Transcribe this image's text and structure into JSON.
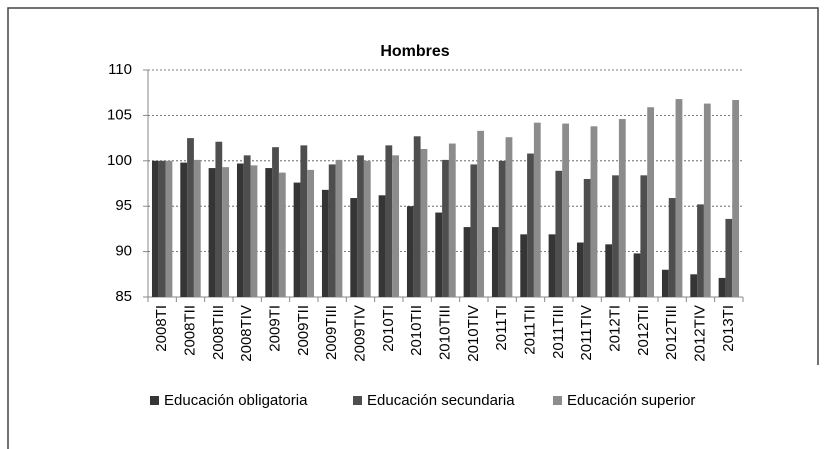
{
  "chart_data": {
    "type": "bar",
    "title": "Hombres",
    "categories": [
      "2008TI",
      "2008TII",
      "2008TIII",
      "2008TIV",
      "2009TI",
      "2009TII",
      "2009TIII",
      "2009TIV",
      "2010TI",
      "2010TII",
      "2010TIII",
      "2010TIV",
      "2011TI",
      "2011TII",
      "2011TIII",
      "2011TIV",
      "2012TI",
      "2012TII",
      "2012TIII",
      "2012TIV",
      "2013TI"
    ],
    "series": [
      {
        "name": "Educación obligatoria",
        "color": "#353535",
        "values": [
          100,
          99.8,
          99.2,
          99.7,
          99.2,
          97.6,
          96.8,
          95.9,
          96.2,
          95.0,
          94.3,
          92.7,
          92.7,
          91.9,
          91.9,
          91.0,
          90.8,
          89.8,
          88.0,
          87.5,
          87.1
        ]
      },
      {
        "name": "Educación secundaria",
        "color": "#4e4e4e",
        "values": [
          100,
          102.5,
          102.1,
          100.6,
          101.5,
          101.7,
          99.6,
          100.6,
          101.7,
          102.7,
          100.1,
          99.6,
          100.0,
          100.8,
          98.9,
          98.0,
          98.4,
          98.4,
          95.9,
          95.2,
          93.6
        ]
      },
      {
        "name": "Educación superior",
        "color": "#8c8c8c",
        "values": [
          100,
          100.1,
          99.3,
          99.5,
          98.7,
          99.0,
          100.1,
          100.0,
          100.6,
          101.3,
          101.9,
          103.3,
          102.6,
          104.2,
          104.1,
          103.8,
          104.6,
          105.9,
          106.8,
          106.3,
          106.7
        ]
      }
    ],
    "ylim": [
      85,
      110
    ],
    "yticks": [
      85,
      90,
      95,
      100,
      105,
      110
    ],
    "grid": true,
    "legend": "bottom"
  }
}
